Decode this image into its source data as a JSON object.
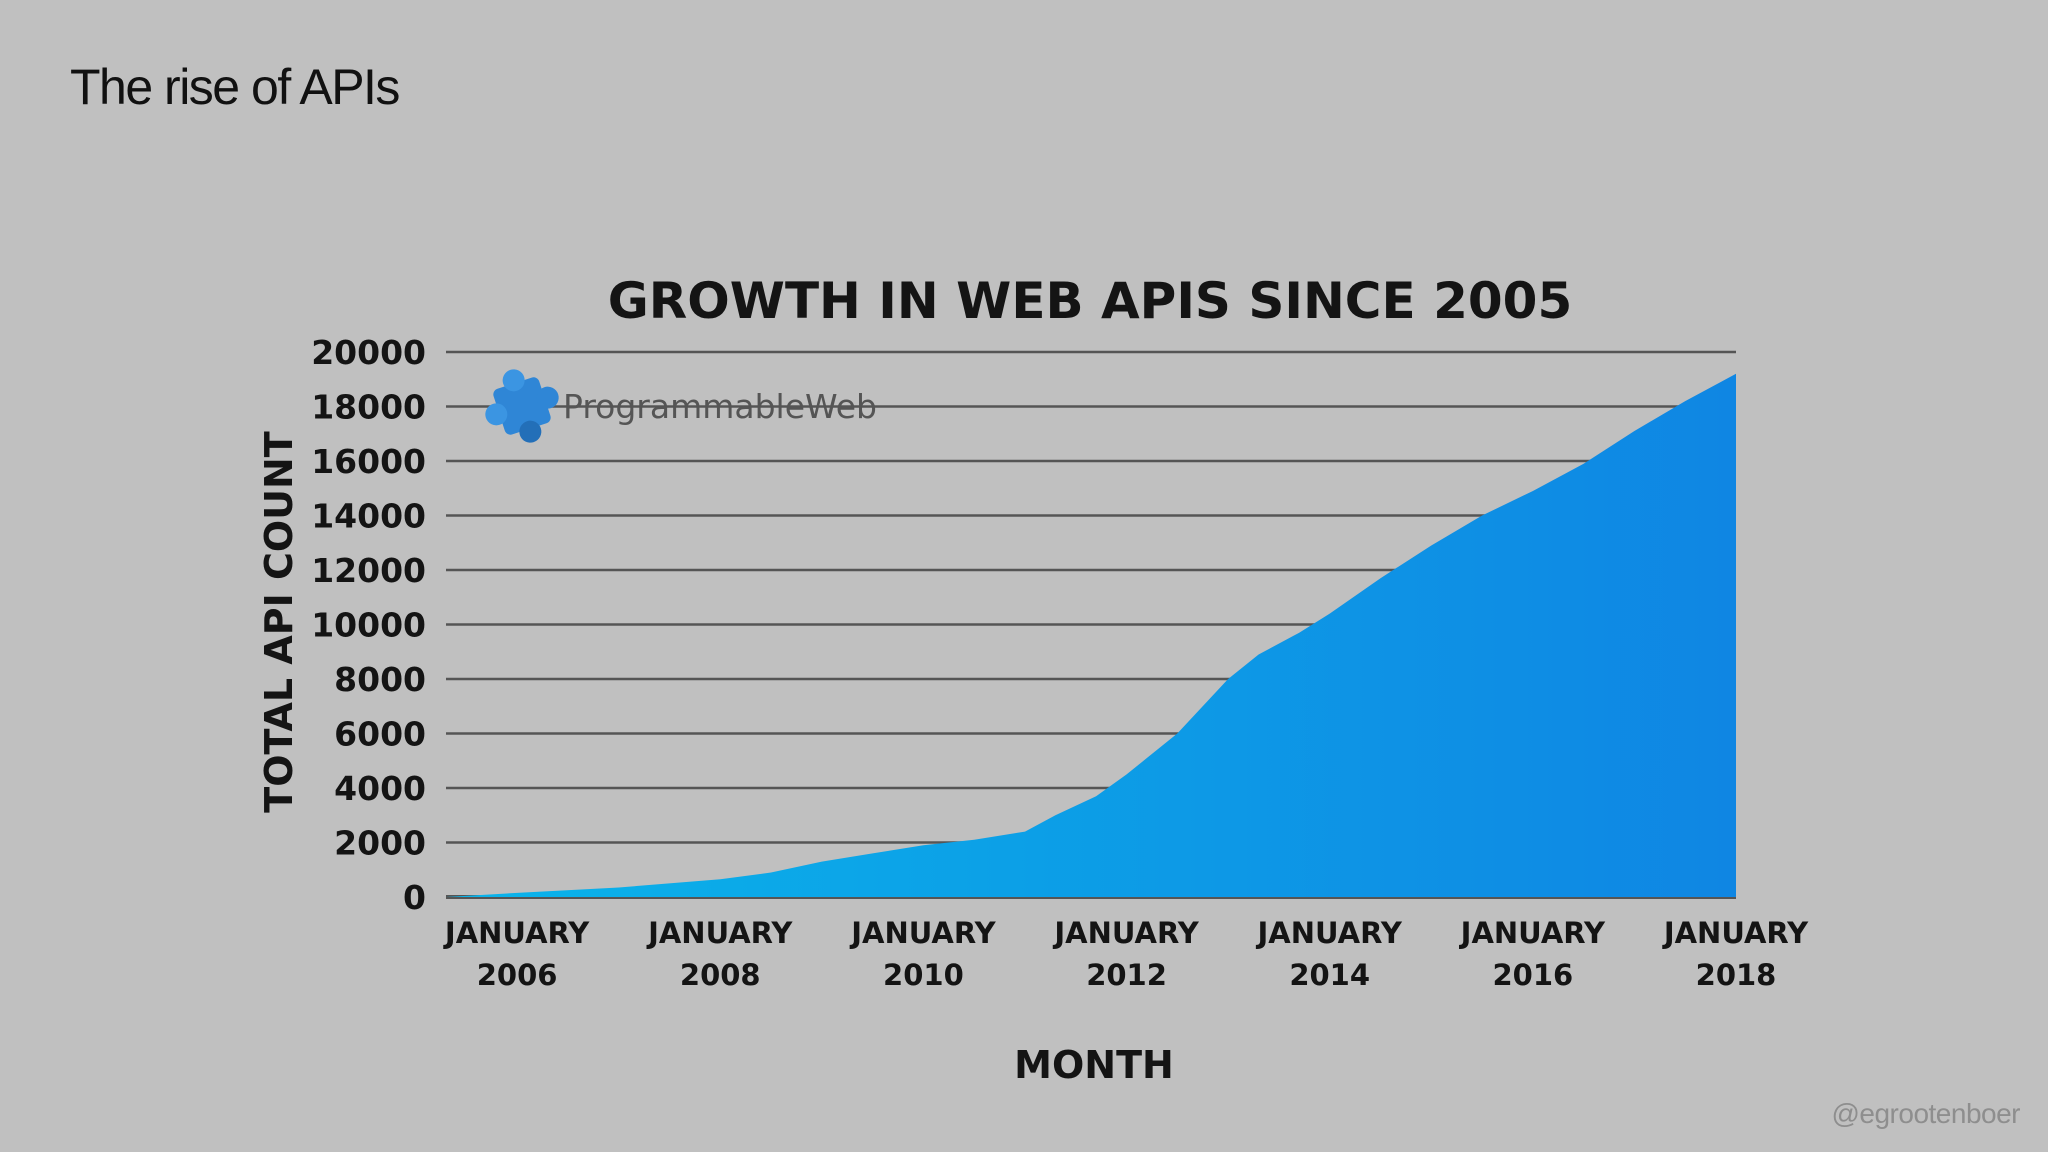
{
  "slide": {
    "title": "The rise of APIs",
    "handle": "@egrootenboer"
  },
  "logo": {
    "text": "ProgrammableWeb",
    "icon": "puzzle-piece-icon",
    "color": "#2f86d6"
  },
  "colors": {
    "background": "#c0c0c0",
    "area_light": "#0ab4ea",
    "area_dark": "#0f86e3",
    "gridline": "#555555"
  },
  "chart_data": {
    "type": "area",
    "title": "GROWTH IN WEB APIS SINCE 2005",
    "xlabel": "MONTH",
    "ylabel": "TOTAL API COUNT",
    "ylim": [
      0,
      20000
    ],
    "yticks": [
      0,
      2000,
      4000,
      6000,
      8000,
      10000,
      12000,
      14000,
      16000,
      18000,
      20000
    ],
    "xlim": [
      2005.3,
      2018.0
    ],
    "xticks": [
      {
        "value": 2006,
        "line1": "JANUARY",
        "line2": "2006"
      },
      {
        "value": 2008,
        "line1": "JANUARY",
        "line2": "2008"
      },
      {
        "value": 2010,
        "line1": "JANUARY",
        "line2": "2010"
      },
      {
        "value": 2012,
        "line1": "JANUARY",
        "line2": "2012"
      },
      {
        "value": 2014,
        "line1": "JANUARY",
        "line2": "2014"
      },
      {
        "value": 2016,
        "line1": "JANUARY",
        "line2": "2016"
      },
      {
        "value": 2018,
        "line1": "JANUARY",
        "line2": "2018"
      }
    ],
    "grid": true,
    "series": [
      {
        "x": [
          2005.3,
          2006.0,
          2007.0,
          2008.0,
          2008.5,
          2009.0,
          2009.5,
          2010.0,
          2010.5,
          2011.0,
          2011.3,
          2011.7,
          2012.0,
          2012.5,
          2013.0,
          2013.3,
          2013.7,
          2014.0,
          2014.5,
          2015.0,
          2015.5,
          2016.0,
          2016.5,
          2017.0,
          2017.5,
          2018.0
        ],
        "y": [
          0,
          150,
          350,
          650,
          900,
          1300,
          1600,
          1900,
          2100,
          2400,
          3000,
          3700,
          4500,
          6000,
          8000,
          8900,
          9700,
          10400,
          11700,
          12900,
          14000,
          14900,
          15900,
          17100,
          18200,
          19200
        ]
      }
    ]
  }
}
